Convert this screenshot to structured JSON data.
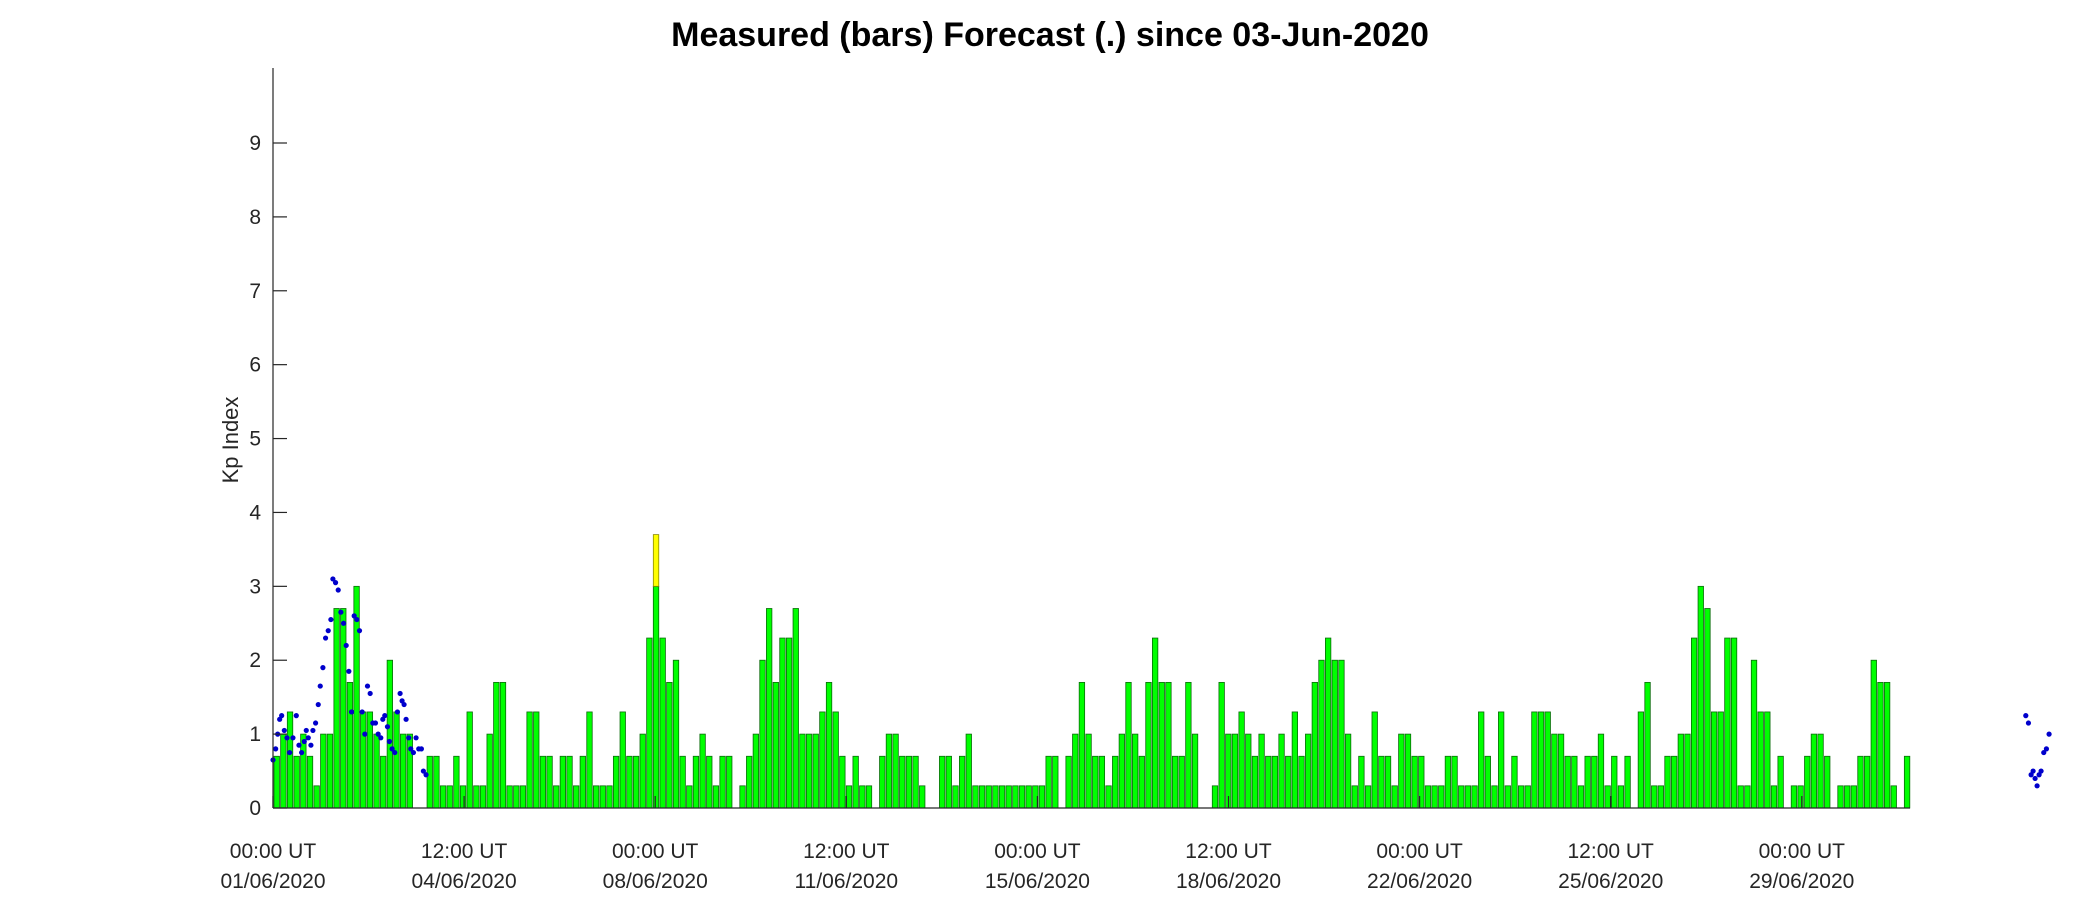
{
  "chart_data": {
    "type": "bar",
    "title": "Measured (bars) Forecast (.) since 03-Jun-2020",
    "xlabel": "",
    "ylabel": "Kp Index",
    "ylim": [
      0,
      10
    ],
    "yticks": [
      0,
      1,
      2,
      3,
      4,
      5,
      6,
      7,
      8,
      9
    ],
    "grid": false,
    "x_start": "01/06/2020 00:00 UT",
    "interval_hours": 3,
    "xtick_labels": [
      {
        "time": "00:00 UT",
        "date": "01/06/2020"
      },
      {
        "time": "12:00 UT",
        "date": "04/06/2020"
      },
      {
        "time": "00:00 UT",
        "date": "08/06/2020"
      },
      {
        "time": "12:00 UT",
        "date": "11/06/2020"
      },
      {
        "time": "00:00 UT",
        "date": "15/06/2020"
      },
      {
        "time": "12:00 UT",
        "date": "18/06/2020"
      },
      {
        "time": "00:00 UT",
        "date": "22/06/2020"
      },
      {
        "time": "12:00 UT",
        "date": "25/06/2020"
      },
      {
        "time": "00:00 UT",
        "date": "29/06/2020"
      }
    ],
    "colors": {
      "quiet": "#00ff00",
      "active": "#ffff00",
      "bar_edge": "#0a6b0a",
      "forecast": "#0000cc"
    },
    "series": [
      {
        "name": "Measured (bars)",
        "values": [
          0.7,
          1.0,
          1.3,
          0.7,
          1.0,
          0.7,
          0.3,
          1.0,
          1.0,
          2.7,
          2.7,
          1.7,
          3.0,
          1.3,
          1.3,
          1.0,
          0.7,
          2.0,
          1.3,
          1.0,
          1.0,
          0.0,
          0.0,
          0.7,
          0.7,
          0.3,
          0.3,
          0.7,
          0.3,
          1.3,
          0.3,
          0.3,
          1.0,
          1.7,
          1.7,
          0.3,
          0.3,
          0.3,
          1.3,
          1.3,
          0.7,
          0.7,
          0.3,
          0.7,
          0.7,
          0.3,
          0.7,
          1.3,
          0.3,
          0.3,
          0.3,
          0.7,
          1.3,
          0.7,
          0.7,
          1.0,
          2.3,
          3.7,
          2.3,
          1.7,
          2.0,
          0.7,
          0.3,
          0.7,
          1.0,
          0.7,
          0.3,
          0.7,
          0.7,
          0.0,
          0.3,
          0.7,
          1.0,
          2.0,
          2.7,
          1.7,
          2.3,
          2.3,
          2.7,
          1.0,
          1.0,
          1.0,
          1.3,
          1.7,
          1.3,
          0.7,
          0.3,
          0.7,
          0.3,
          0.3,
          0.0,
          0.7,
          1.0,
          1.0,
          0.7,
          0.7,
          0.7,
          0.3,
          0.0,
          0.0,
          0.7,
          0.7,
          0.3,
          0.7,
          1.0,
          0.3,
          0.3,
          0.3,
          0.3,
          0.3,
          0.3,
          0.3,
          0.3,
          0.3,
          0.3,
          0.3,
          0.7,
          0.7,
          0.0,
          0.7,
          1.0,
          1.7,
          1.0,
          0.7,
          0.7,
          0.3,
          0.7,
          1.0,
          1.7,
          1.0,
          0.7,
          1.7,
          2.3,
          1.7,
          1.7,
          0.7,
          0.7,
          1.7,
          1.0,
          0.0,
          0.0,
          0.3,
          1.7,
          1.0,
          1.0,
          1.3,
          1.0,
          0.7,
          1.0,
          0.7,
          0.7,
          1.0,
          0.7,
          1.3,
          0.7,
          1.0,
          1.7,
          2.0,
          2.3,
          2.0,
          2.0,
          1.0,
          0.3,
          0.7,
          0.3,
          1.3,
          0.7,
          0.7,
          0.3,
          1.0,
          1.0,
          0.7,
          0.7,
          0.3,
          0.3,
          0.3,
          0.7,
          0.7,
          0.3,
          0.3,
          0.3,
          1.3,
          0.7,
          0.3,
          1.3,
          0.3,
          0.7,
          0.3,
          0.3,
          1.3,
          1.3,
          1.3,
          1.0,
          1.0,
          0.7,
          0.7,
          0.3,
          0.7,
          0.7,
          1.0,
          0.3,
          0.7,
          0.3,
          0.7,
          0.0,
          1.3,
          1.7,
          0.3,
          0.3,
          0.7,
          0.7,
          1.0,
          1.0,
          2.3,
          3.0,
          2.7,
          1.3,
          1.3,
          2.3,
          2.3,
          0.3,
          0.3,
          2.0,
          1.3,
          1.3,
          0.3,
          0.7,
          0.0,
          0.3,
          0.3,
          0.7,
          1.0,
          1.0,
          0.7,
          0.0,
          0.3,
          0.3,
          0.3,
          0.7,
          0.7,
          2.0,
          1.7,
          1.7,
          0.3,
          0.0,
          0.7
        ]
      },
      {
        "name": "Forecast (.)",
        "points": [
          [
            0.0,
            0.65
          ],
          [
            0.4,
            0.8
          ],
          [
            0.7,
            1.0
          ],
          [
            1.0,
            1.2
          ],
          [
            1.3,
            1.25
          ],
          [
            1.7,
            1.05
          ],
          [
            2.1,
            0.95
          ],
          [
            2.5,
            0.75
          ],
          [
            3.0,
            0.95
          ],
          [
            3.5,
            1.25
          ],
          [
            3.9,
            0.85
          ],
          [
            4.3,
            0.75
          ],
          [
            4.7,
            0.9
          ],
          [
            5.0,
            1.05
          ],
          [
            5.3,
            0.95
          ],
          [
            5.7,
            0.85
          ],
          [
            6.0,
            1.05
          ],
          [
            6.4,
            1.15
          ],
          [
            6.8,
            1.4
          ],
          [
            7.1,
            1.65
          ],
          [
            7.5,
            1.9
          ],
          [
            7.9,
            2.3
          ],
          [
            8.3,
            2.4
          ],
          [
            8.7,
            2.55
          ],
          [
            9.0,
            3.1
          ],
          [
            9.4,
            3.05
          ],
          [
            9.8,
            2.95
          ],
          [
            10.2,
            2.65
          ],
          [
            10.6,
            2.5
          ],
          [
            11.0,
            2.2
          ],
          [
            11.4,
            1.85
          ],
          [
            11.8,
            1.3
          ],
          [
            12.2,
            2.6
          ],
          [
            12.6,
            2.55
          ],
          [
            13.0,
            2.4
          ],
          [
            13.4,
            1.3
          ],
          [
            13.8,
            1.0
          ],
          [
            14.2,
            1.65
          ],
          [
            14.6,
            1.55
          ],
          [
            15.0,
            1.15
          ],
          [
            15.4,
            1.15
          ],
          [
            15.8,
            1.0
          ],
          [
            16.2,
            0.95
          ],
          [
            16.5,
            1.2
          ],
          [
            16.8,
            1.25
          ],
          [
            17.2,
            1.1
          ],
          [
            17.5,
            0.9
          ],
          [
            17.9,
            0.8
          ],
          [
            18.3,
            0.75
          ],
          [
            18.7,
            1.3
          ],
          [
            19.1,
            1.55
          ],
          [
            19.4,
            1.45
          ],
          [
            19.7,
            1.4
          ],
          [
            20.0,
            1.2
          ],
          [
            20.4,
            0.95
          ],
          [
            20.7,
            0.8
          ],
          [
            21.1,
            0.75
          ],
          [
            21.5,
            0.95
          ],
          [
            21.9,
            0.8
          ],
          [
            22.3,
            0.8
          ],
          [
            22.6,
            0.5
          ],
          [
            23.0,
            0.45
          ],
          [
            263.4,
            1.25
          ],
          [
            263.8,
            1.15
          ],
          [
            264.2,
            0.45
          ],
          [
            264.5,
            0.5
          ],
          [
            264.8,
            0.4
          ],
          [
            265.1,
            0.3
          ],
          [
            265.4,
            0.45
          ],
          [
            265.7,
            0.5
          ],
          [
            266.1,
            0.75
          ],
          [
            266.5,
            0.8
          ],
          [
            266.9,
            1.0
          ]
        ]
      }
    ]
  }
}
